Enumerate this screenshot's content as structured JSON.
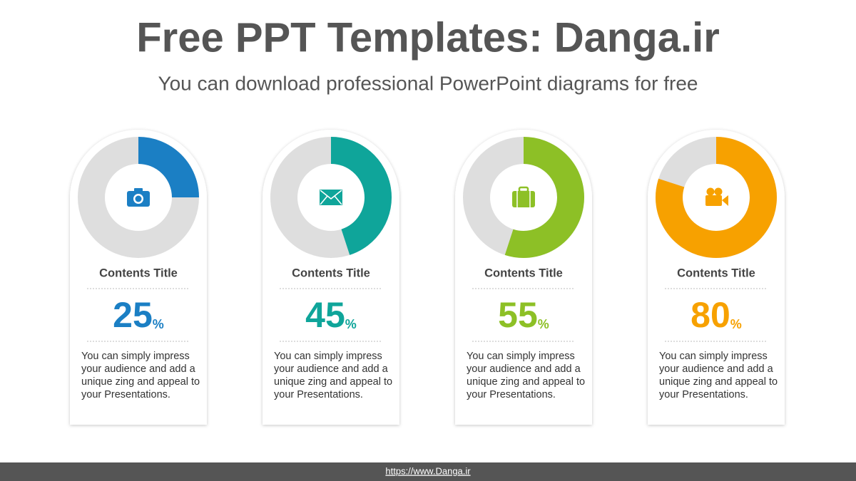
{
  "header": {
    "title": "Free PPT Templates: Danga.ir",
    "subtitle": "You can download professional PowerPoint diagrams for free"
  },
  "chart_data": [
    {
      "type": "donut",
      "title": "Contents Title",
      "values": [
        25
      ],
      "unit": "%",
      "color": "#1b7fc4",
      "description": "You can simply impress your audience and add a unique zing and appeal to your Presentations."
    },
    {
      "type": "donut",
      "title": "Contents Title",
      "values": [
        45
      ],
      "unit": "%",
      "color": "#0fa59a",
      "description": "You can simply impress your audience and add a unique zing and appeal to your Presentations."
    },
    {
      "type": "donut",
      "title": "Contents Title",
      "values": [
        55
      ],
      "unit": "%",
      "color": "#8dc026",
      "description": "You can simply impress your audience and add a unique zing and appeal to your Presentations."
    },
    {
      "type": "donut",
      "title": "Contents Title",
      "values": [
        80
      ],
      "unit": "%",
      "color": "#f7a100",
      "description": "You can simply impress your audience and add a unique zing and appeal to your Presentations."
    }
  ],
  "footer": {
    "url": "https://www.Danga.ir"
  }
}
